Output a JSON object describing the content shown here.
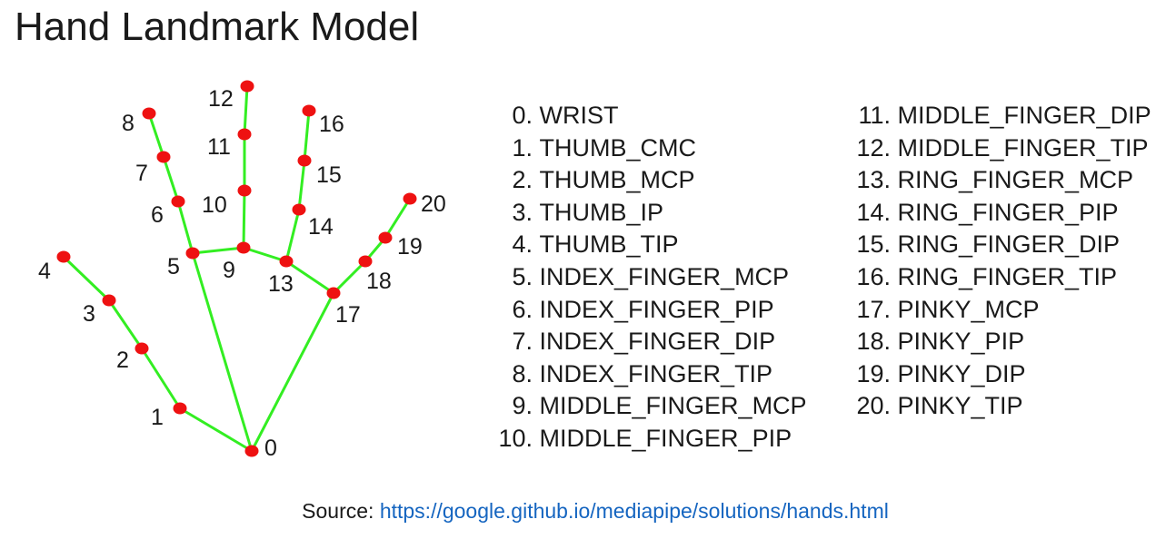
{
  "title": "Hand Landmark Model",
  "landmarks": [
    {
      "id": "0",
      "name": "WRIST"
    },
    {
      "id": "1",
      "name": "THUMB_CMC"
    },
    {
      "id": "2",
      "name": "THUMB_MCP"
    },
    {
      "id": "3",
      "name": "THUMB_IP"
    },
    {
      "id": "4",
      "name": "THUMB_TIP"
    },
    {
      "id": "5",
      "name": "INDEX_FINGER_MCP"
    },
    {
      "id": "6",
      "name": "INDEX_FINGER_PIP"
    },
    {
      "id": "7",
      "name": "INDEX_FINGER_DIP"
    },
    {
      "id": "8",
      "name": "INDEX_FINGER_TIP"
    },
    {
      "id": "9",
      "name": "MIDDLE_FINGER_MCP"
    },
    {
      "id": "10",
      "name": "MIDDLE_FINGER_PIP"
    },
    {
      "id": "11",
      "name": "MIDDLE_FINGER_DIP"
    },
    {
      "id": "12",
      "name": "MIDDLE_FINGER_TIP"
    },
    {
      "id": "13",
      "name": "RING_FINGER_MCP"
    },
    {
      "id": "14",
      "name": "RING_FINGER_PIP"
    },
    {
      "id": "15",
      "name": "RING_FINGER_DIP"
    },
    {
      "id": "16",
      "name": "RING_FINGER_TIP"
    },
    {
      "id": "17",
      "name": "PINKY_MCP"
    },
    {
      "id": "18",
      "name": "PINKY_PIP"
    },
    {
      "id": "19",
      "name": "PINKY_DIP"
    },
    {
      "id": "20",
      "name": "PINKY_TIP"
    }
  ],
  "connections": [
    [
      0,
      1
    ],
    [
      1,
      2
    ],
    [
      2,
      3
    ],
    [
      3,
      4
    ],
    [
      0,
      5
    ],
    [
      5,
      6
    ],
    [
      6,
      7
    ],
    [
      7,
      8
    ],
    [
      5,
      9
    ],
    [
      9,
      10
    ],
    [
      10,
      11
    ],
    [
      11,
      12
    ],
    [
      9,
      13
    ],
    [
      13,
      14
    ],
    [
      14,
      15
    ],
    [
      15,
      16
    ],
    [
      13,
      17
    ],
    [
      0,
      17
    ],
    [
      17,
      18
    ],
    [
      18,
      19
    ],
    [
      19,
      20
    ]
  ],
  "colors": {
    "bone": "#33ee22",
    "joint": "#ee1111",
    "link": "#1565c0"
  },
  "source": {
    "label": "Source:",
    "url": "https://google.github.io/mediapipe/solutions/hands.html"
  }
}
